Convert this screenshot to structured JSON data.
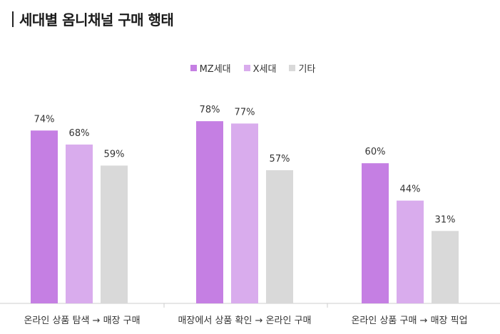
{
  "title": "세대별 옴니채널 구매 행태",
  "chart_data": {
    "type": "bar",
    "title": "세대별 옴니채널 구매 행태",
    "categories": [
      "온라인 상품 탐색 → 매장 구매",
      "매장에서 상품 확인 → 온라인 구매",
      "온라인 상품 구매 → 매장 픽업"
    ],
    "series": [
      {
        "name": "MZ세대",
        "color": "#c57fe3",
        "values": [
          74,
          78,
          60
        ]
      },
      {
        "name": "X세대",
        "color": "#d9aced",
        "values": [
          68,
          77,
          44
        ]
      },
      {
        "name": "기타",
        "color": "#d9d9d9",
        "values": [
          59,
          57,
          31
        ]
      }
    ],
    "value_suffix": "%",
    "ylim": [
      0,
      100
    ],
    "legend_position": "top-center",
    "grid": false
  }
}
